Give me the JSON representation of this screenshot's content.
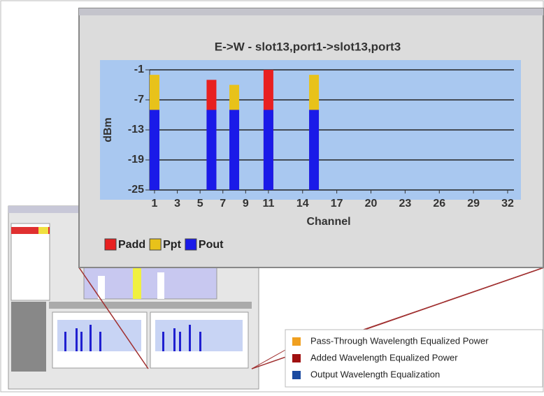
{
  "chart_data": {
    "type": "bar",
    "title": "E->W - slot13,port1->slot13,port3",
    "x_label": "Channel",
    "y_label": "dBm",
    "x": [
      1,
      6,
      8,
      11,
      15
    ],
    "series": [
      {
        "name": "Padd",
        "color": "#e82020",
        "values": [
          null,
          -3,
          null,
          -1,
          null
        ]
      },
      {
        "name": "Ppt",
        "color": "#e8c21a",
        "values": [
          -2,
          null,
          -4,
          null,
          -2
        ]
      },
      {
        "name": "Pout",
        "color": "#1a1ae8",
        "values": [
          -9,
          -9,
          -9,
          -9,
          -9
        ]
      }
    ],
    "xlim": [
      1,
      32
    ],
    "xticks": [
      1,
      3,
      5,
      7,
      9,
      11,
      14,
      17,
      20,
      23,
      26,
      29,
      32
    ],
    "ylim": [
      -25,
      -1
    ],
    "yticks": [
      -1,
      -7,
      -13,
      -19,
      -25
    ],
    "grid": true
  },
  "callout_legend": [
    {
      "label": "Pass-Through Wavelength Equalized Power",
      "color": "#f0a020"
    },
    {
      "label": "Added Wavelength Equalized Power",
      "color": "#a01010"
    },
    {
      "label": "Output Wavelength Equalization",
      "color": "#1a4aa0"
    }
  ]
}
